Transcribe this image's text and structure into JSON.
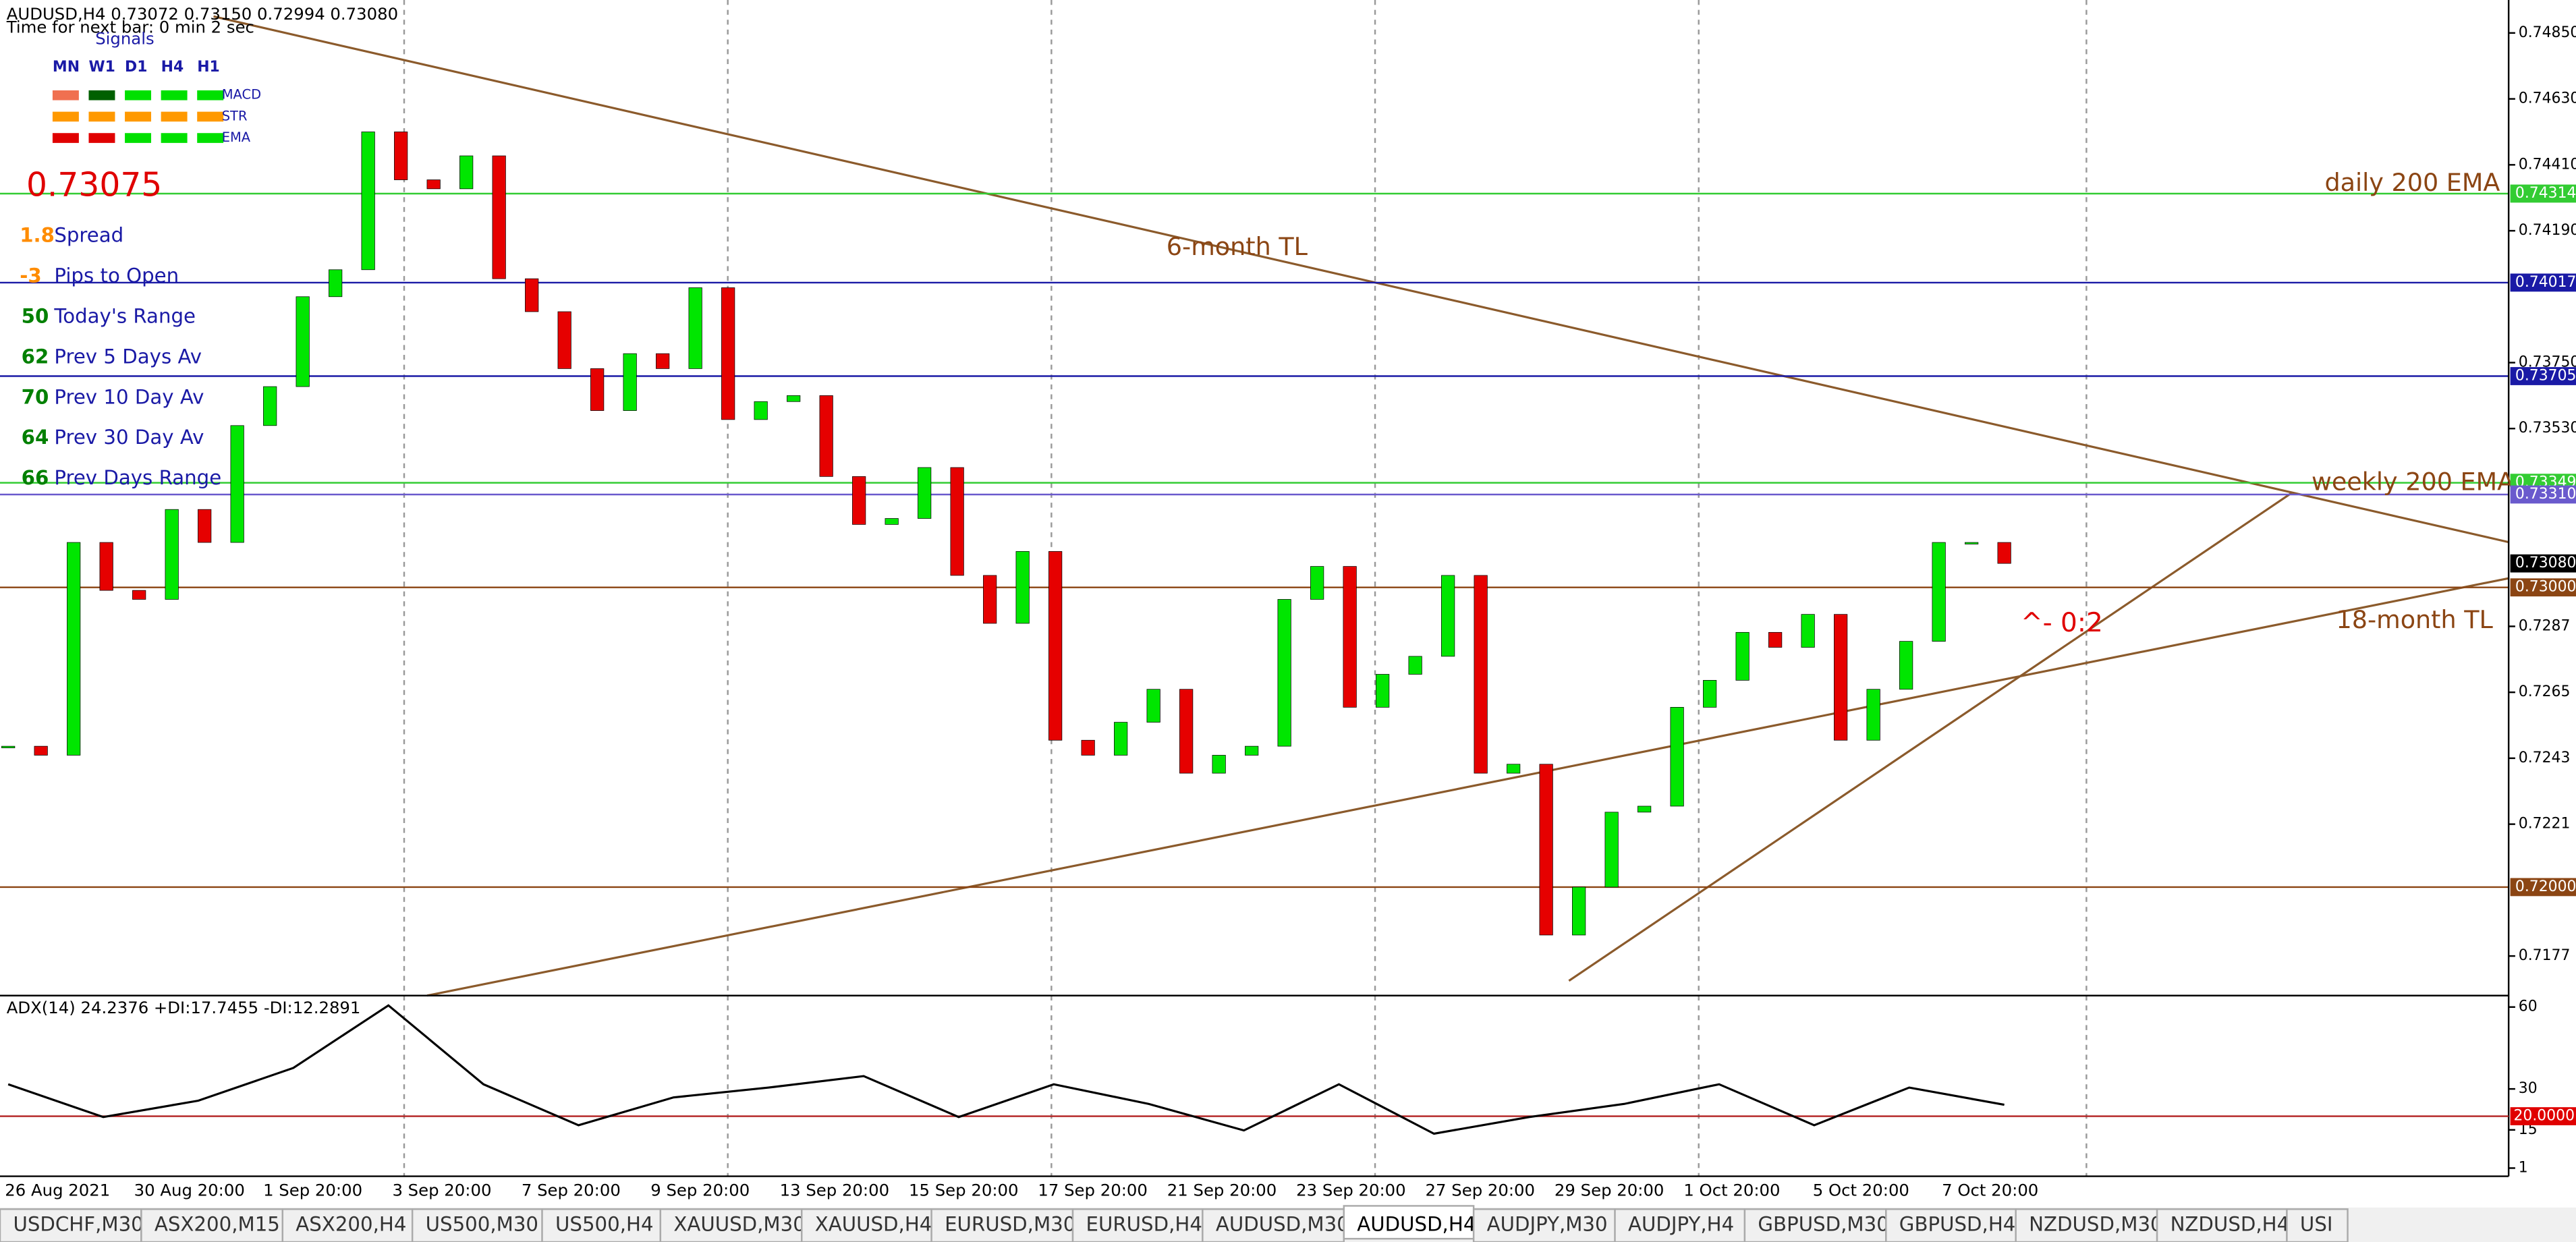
{
  "header": {
    "symbol_line": "AUDUSD,H4  0.73072 0.73150 0.72994 0.73080",
    "timer": "Time for next bar: 0 min 2 sec",
    "signals_title": "Signals",
    "timeframes": [
      "MN",
      "W1",
      "D1",
      "H4",
      "H1"
    ],
    "indicators": [
      "MACD",
      "STR",
      "EMA"
    ]
  },
  "info": {
    "price": "0.73075",
    "rows": [
      {
        "value": "1.8",
        "label": "Spread"
      },
      {
        "value": "-3",
        "label": "Pips to Open"
      },
      {
        "value": "50",
        "label": "Today's Range"
      },
      {
        "value": "62",
        "label": "Prev 5 Days Av"
      },
      {
        "value": "70",
        "label": "Prev 10 Day Av"
      },
      {
        "value": "64",
        "label": "Prev 30 Day Av"
      },
      {
        "value": "66",
        "label": "Prev Days Range"
      }
    ]
  },
  "chart_data": {
    "type": "candlestick",
    "closes": [
      0.7247,
      0.7244,
      0.7315,
      0.7299,
      0.7296,
      0.7326,
      0.7315,
      0.7354,
      0.7367,
      0.7397,
      0.7406,
      0.7452,
      0.7436,
      0.7433,
      0.7444,
      0.7403,
      0.7392,
      0.7373,
      0.7359,
      0.7378,
      0.7373,
      0.74,
      0.7356,
      0.7362,
      0.7364,
      0.7337,
      0.7321,
      0.7323,
      0.734,
      0.7304,
      0.7288,
      0.7312,
      0.7249,
      0.7244,
      0.7255,
      0.7266,
      0.7238,
      0.7244,
      0.7247,
      0.7296,
      0.7307,
      0.726,
      0.7271,
      0.7277,
      0.7304,
      0.7238,
      0.7241,
      0.7184,
      0.72,
      0.7225,
      0.7227,
      0.726,
      0.7269,
      0.7285,
      0.728,
      0.7291,
      0.7249,
      0.7266,
      0.7282,
      0.7315,
      0.7315,
      0.7308
    ],
    "up_color": "#00e600",
    "down_color": "#e60000",
    "ylim": [
      0.71638,
      0.7496
    ],
    "yticks": [
      {
        "value": 0.7485,
        "label": "0.74850"
      },
      {
        "value": 0.7463,
        "label": "0.74630"
      },
      {
        "value": 0.7441,
        "label": "0.74410"
      },
      {
        "value": 0.7419,
        "label": "0.74190"
      },
      {
        "value": 0.7375,
        "label": "0.73750"
      },
      {
        "value": 0.7353,
        "label": "0.73530"
      },
      0.7287,
      0.7265,
      0.7243,
      0.7221,
      0.7177
    ],
    "levels": [
      {
        "value": 0.74314,
        "color": "#33cc33"
      },
      {
        "value": 0.74017,
        "color": "#1a1aa6"
      },
      {
        "value": 0.73705,
        "color": "#1a1aa6"
      },
      {
        "value": 0.73349,
        "color": "#33cc33"
      },
      {
        "value": 0.7331,
        "label": "0.73310",
        "color": "#6a5acd"
      },
      {
        "value": 0.7308,
        "label": "0.73080",
        "color": "#000000"
      },
      {
        "value": 0.73,
        "label": "0.73000",
        "color": "#8b4513"
      },
      {
        "value": 0.72,
        "label": "0.72000",
        "color": "#8b4513"
      }
    ],
    "x_labels": [
      "26 Aug 2021",
      "30 Aug 20:00",
      "1 Sep 20:00",
      "3 Sep 20:00",
      "7 Sep 20:00",
      "9 Sep 20:00",
      "13 Sep 20:00",
      "15 Sep 20:00",
      "17 Sep 20:00",
      "21 Sep 20:00",
      "23 Sep 20:00",
      "27 Sep 20:00",
      "29 Sep 20:00",
      "1 Oct 20:00",
      "5 Oct 20:00",
      "7 Oct 20:00"
    ],
    "annotations": [
      "6-month TL",
      "daily 200 EMA",
      "weekly 200 EMA",
      "18-month TL",
      "^- 0:2"
    ]
  },
  "adx": {
    "title": "ADX(14) 24.2376 +DI:17.7455 -DI:12.2891",
    "ylim": [
      -2,
      64.2
    ],
    "yticks": [
      60,
      30,
      15,
      1
    ],
    "level": {
      "value": 20,
      "label": "20.0000"
    },
    "values": [
      31.7,
      19.7,
      25.7,
      37.7,
      60.6,
      31.7,
      16.7,
      26.9,
      30.5,
      34.7,
      19.7,
      31.7,
      24.5,
      14.8,
      31.7,
      13.6,
      19.7,
      24.5,
      31.7,
      16.7,
      30.5,
      24.2
    ],
    "color": "#000000"
  },
  "tabs": {
    "items": [
      "USDCHF,M30",
      "ASX200,M15",
      "ASX200,H4",
      "US500,M30",
      "US500,H4",
      "XAUUSD,M30",
      "XAUUSD,H4",
      "EURUSD,M30",
      "EURUSD,H4",
      "AUDUSD,M30",
      "AUDUSD,H4",
      "AUDJPY,M30",
      "AUDJPY,H4",
      "GBPUSD,M30",
      "GBPUSD,H4",
      "NZDUSD,M30",
      "NZDUSD,H4",
      "USI"
    ],
    "active": 10
  }
}
